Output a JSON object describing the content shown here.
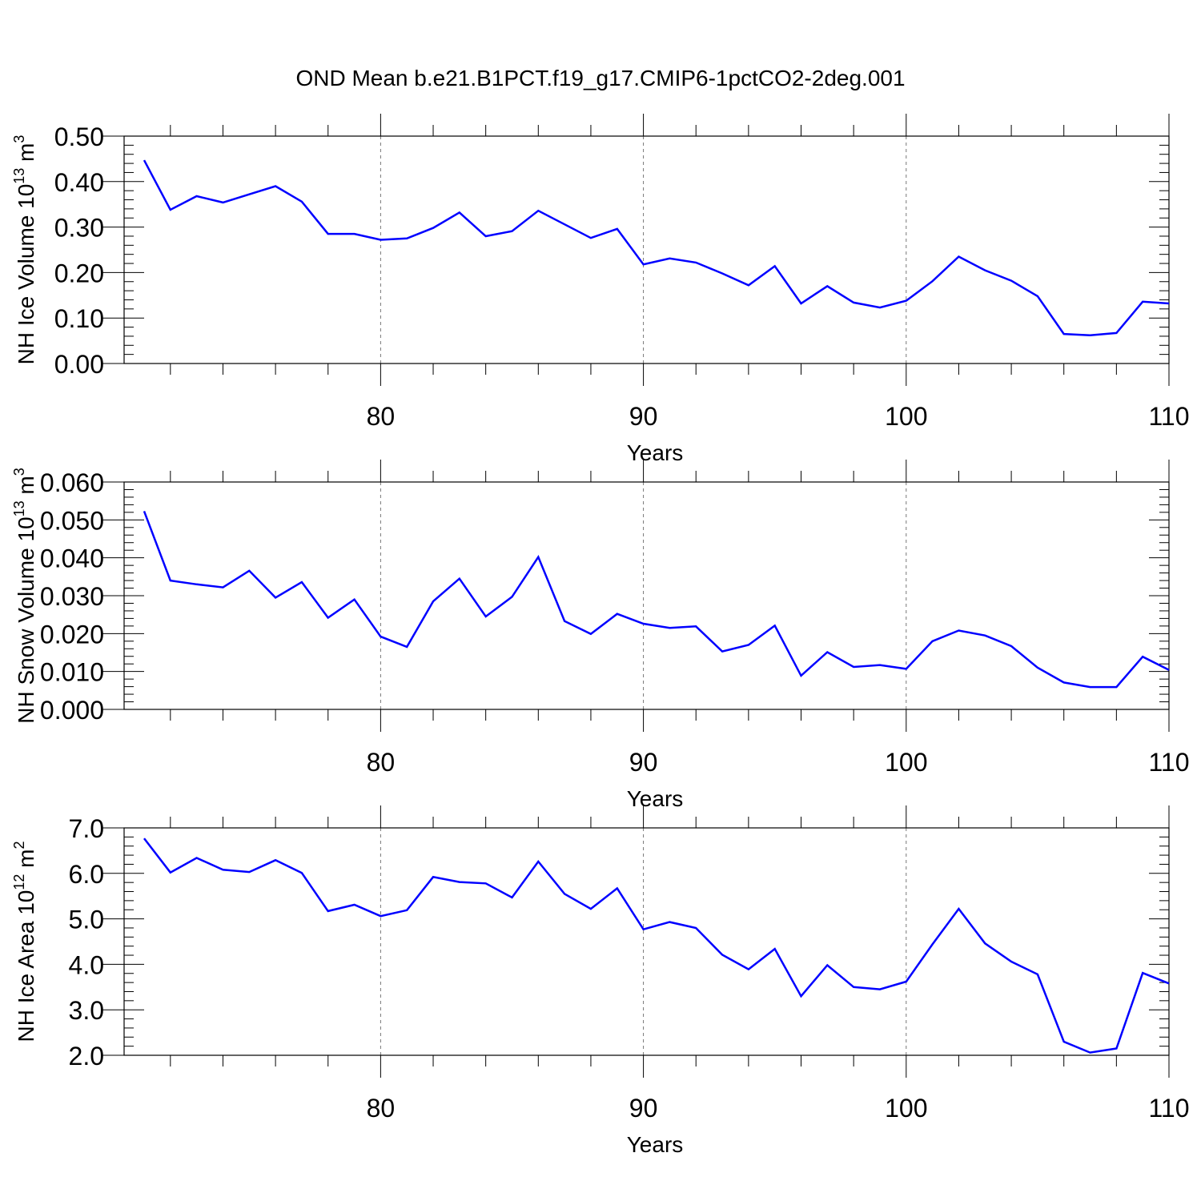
{
  "title": "OND Mean b.e21.B1PCT.f19_g17.CMIP6-1pctCO2-2deg.001",
  "chart_data": [
    {
      "type": "line",
      "xlabel": "Years",
      "ylabel": {
        "main": "NH Ice Volume 10",
        "exp": "13",
        "unit": " m",
        "unit_exp": "3"
      },
      "xlim": [
        71,
        110
      ],
      "ylim": [
        0,
        0.5
      ],
      "xticks": [
        80,
        90,
        100,
        110
      ],
      "yticks": [
        "0.00",
        "0.10",
        "0.20",
        "0.30",
        "0.40",
        "0.50"
      ],
      "yminor_step": 0.02,
      "grid": "dashed vertical at major x ticks",
      "series": [
        {
          "color": "#0000ff",
          "x": [
            71,
            72,
            73,
            74,
            75,
            76,
            77,
            78,
            79,
            80,
            81,
            82,
            83,
            84,
            85,
            86,
            87,
            88,
            89,
            90,
            91,
            92,
            93,
            94,
            95,
            96,
            97,
            98,
            99,
            100,
            101,
            102,
            103,
            104,
            105,
            106,
            107,
            108,
            109,
            110
          ],
          "y": [
            0.447,
            0.338,
            0.368,
            0.354,
            0.372,
            0.39,
            0.356,
            0.285,
            0.285,
            0.272,
            0.275,
            0.298,
            0.332,
            0.28,
            0.291,
            0.336,
            0.306,
            0.276,
            0.296,
            0.218,
            0.231,
            0.222,
            0.198,
            0.172,
            0.214,
            0.132,
            0.17,
            0.134,
            0.123,
            0.138,
            0.181,
            0.235,
            0.205,
            0.182,
            0.148,
            0.065,
            0.062,
            0.067,
            0.136,
            0.132
          ]
        }
      ]
    },
    {
      "type": "line",
      "xlabel": "Years",
      "ylabel": {
        "main": "NH Snow Volume 10",
        "exp": "13",
        "unit": " m",
        "unit_exp": "3"
      },
      "xlim": [
        71,
        110
      ],
      "ylim": [
        0,
        0.06
      ],
      "xticks": [
        80,
        90,
        100,
        110
      ],
      "yticks": [
        "0.000",
        "0.010",
        "0.020",
        "0.030",
        "0.040",
        "0.050",
        "0.060"
      ],
      "yminor_step": 0.002,
      "grid": "dashed vertical at major x ticks",
      "series": [
        {
          "color": "#0000ff",
          "x": [
            71,
            72,
            73,
            74,
            75,
            76,
            77,
            78,
            79,
            80,
            81,
            82,
            83,
            84,
            85,
            86,
            87,
            88,
            89,
            90,
            91,
            92,
            93,
            94,
            95,
            96,
            97,
            98,
            99,
            100,
            101,
            102,
            103,
            104,
            105,
            106,
            107,
            108,
            109,
            110
          ],
          "y": [
            0.0523,
            0.034,
            0.033,
            0.0322,
            0.0366,
            0.0295,
            0.0336,
            0.0242,
            0.029,
            0.0192,
            0.0165,
            0.0285,
            0.0345,
            0.0245,
            0.0297,
            0.0402,
            0.0233,
            0.0199,
            0.0252,
            0.0226,
            0.0215,
            0.0219,
            0.0153,
            0.017,
            0.0221,
            0.0089,
            0.0151,
            0.0112,
            0.0117,
            0.0107,
            0.018,
            0.0208,
            0.0195,
            0.0167,
            0.011,
            0.0071,
            0.0059,
            0.0059,
            0.0139,
            0.0104
          ]
        }
      ]
    },
    {
      "type": "line",
      "xlabel": "Years",
      "ylabel": {
        "main": "NH Ice Area 10",
        "exp": "12",
        "unit": " m",
        "unit_exp": "2"
      },
      "xlim": [
        71,
        110
      ],
      "ylim": [
        2.0,
        7.0
      ],
      "xticks": [
        80,
        90,
        100,
        110
      ],
      "yticks": [
        "2.0",
        "3.0",
        "4.0",
        "5.0",
        "6.0",
        "7.0"
      ],
      "yminor_step": 0.2,
      "grid": "dashed vertical at major x ticks",
      "series": [
        {
          "color": "#0000ff",
          "x": [
            71,
            72,
            73,
            74,
            75,
            76,
            77,
            78,
            79,
            80,
            81,
            82,
            83,
            84,
            85,
            86,
            87,
            88,
            89,
            90,
            91,
            92,
            93,
            94,
            95,
            96,
            97,
            98,
            99,
            100,
            101,
            102,
            103,
            104,
            105,
            106,
            107,
            108,
            109,
            110
          ],
          "y": [
            6.77,
            6.02,
            6.34,
            6.08,
            6.03,
            6.29,
            6.01,
            5.17,
            5.31,
            5.06,
            5.19,
            5.92,
            5.81,
            5.78,
            5.47,
            6.26,
            5.55,
            5.22,
            5.67,
            4.77,
            4.93,
            4.8,
            4.21,
            3.89,
            4.34,
            3.3,
            3.98,
            3.5,
            3.45,
            3.62,
            4.44,
            5.22,
            4.46,
            4.06,
            3.78,
            2.3,
            2.06,
            2.15,
            3.81,
            3.58
          ]
        }
      ]
    }
  ]
}
